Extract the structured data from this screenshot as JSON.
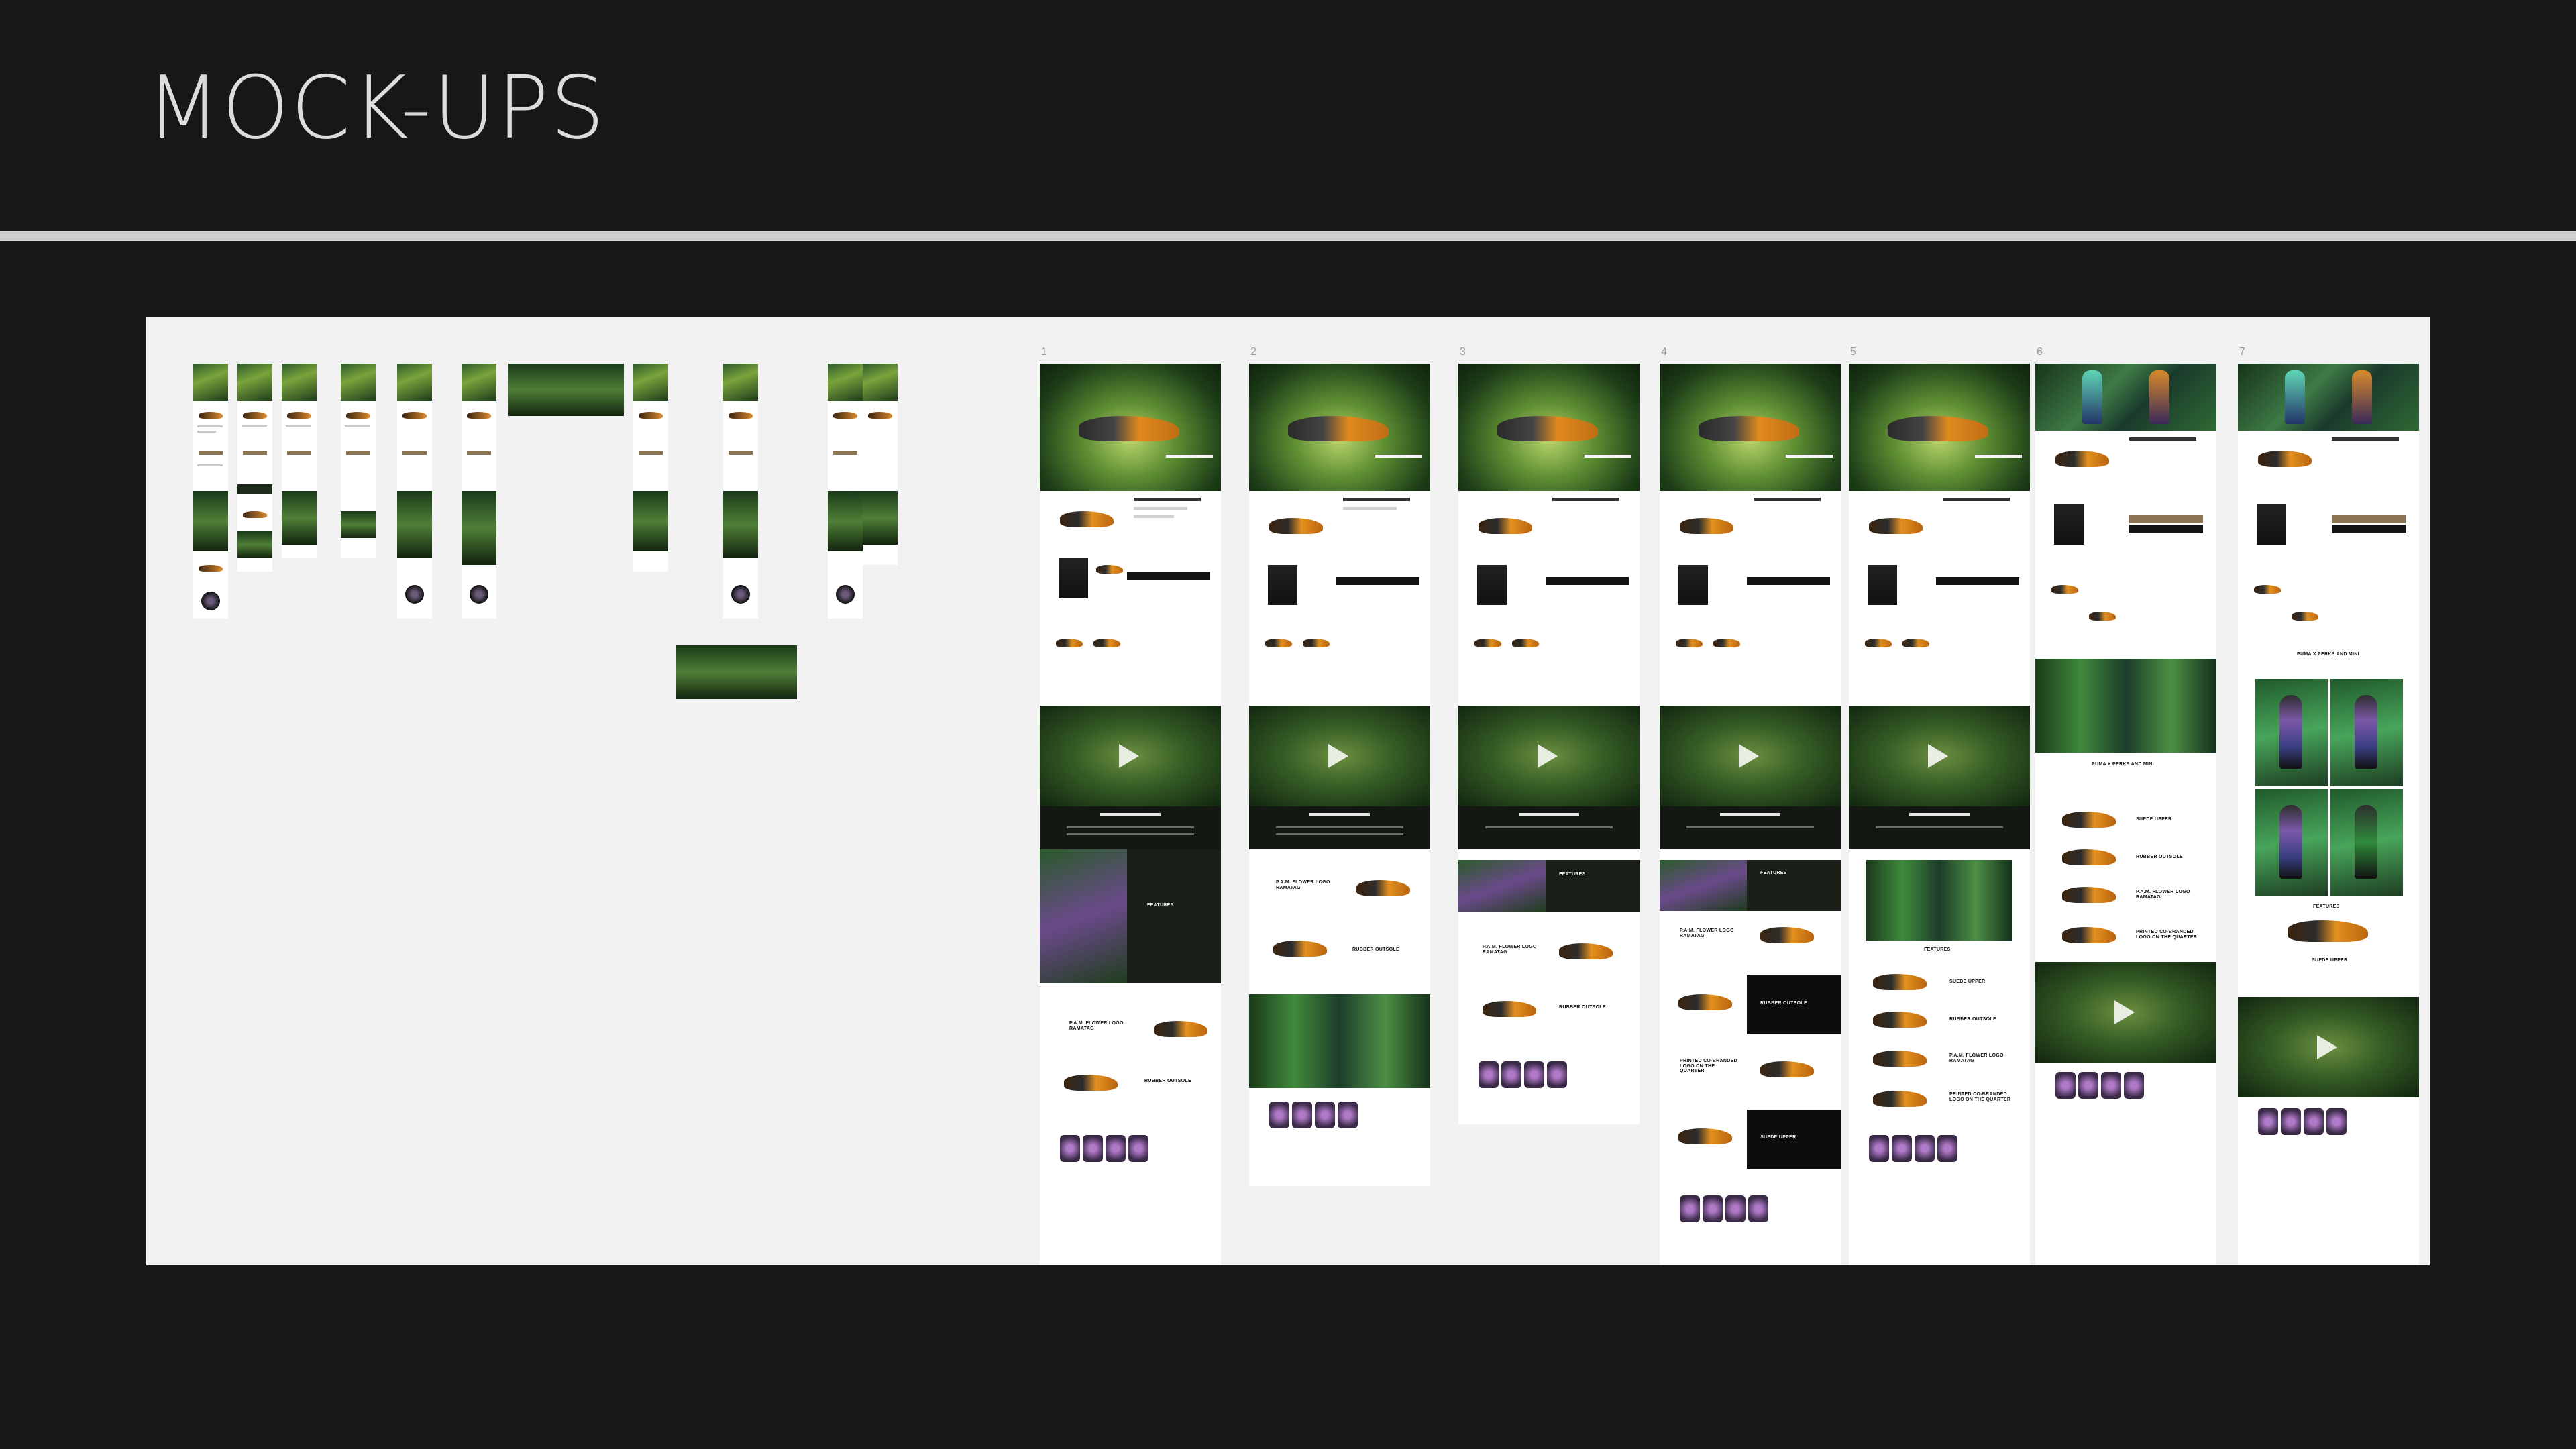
{
  "slide": {
    "title": "MOCK-UPS"
  },
  "mockup_labels": [
    "1",
    "2",
    "3",
    "4",
    "5",
    "6",
    "7"
  ],
  "feature_labels": {
    "flower_logo": "P.A.M. FLOWER LOGO RAMATAG",
    "rubber_outsole": "RUBBER OUTSOLE",
    "suede_upper": "SUEDE UPPER",
    "printed_logo": "PRINTED CO-BRANDED LOGO ON THE QUARTER",
    "features": "FEATURES",
    "features_title": "PUMA X PERKS AND MINI"
  },
  "colors": {
    "background": "#171717",
    "board": "#f2f2f2",
    "accent": "#8a7451",
    "shoe_orange": "#e3901f"
  }
}
